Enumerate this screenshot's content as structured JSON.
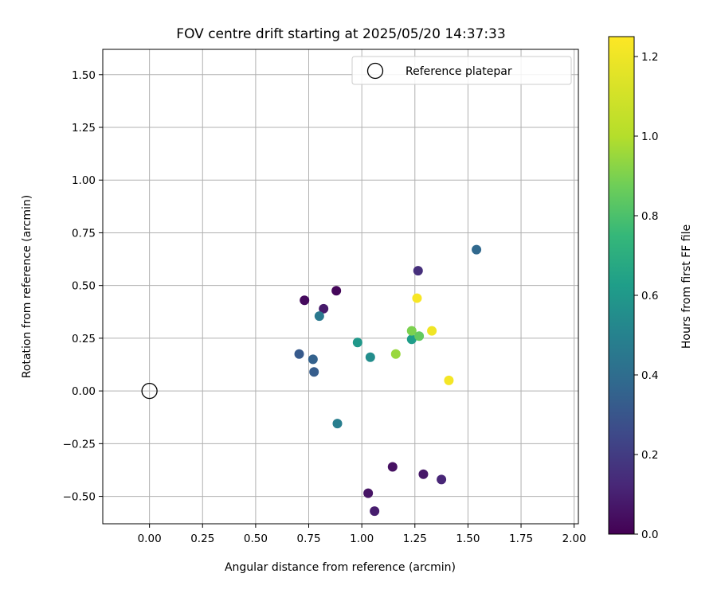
{
  "chart_data": {
    "type": "scatter",
    "title": "FOV centre drift starting at 2025/05/20 14:37:33",
    "xlabel": "Angular distance from reference (arcmin)",
    "ylabel": "Rotation from reference (arcmin)",
    "xlim": [
      -0.22,
      2.02
    ],
    "ylim": [
      -0.63,
      1.62
    ],
    "xticks": [
      0.0,
      0.25,
      0.5,
      0.75,
      1.0,
      1.25,
      1.5,
      1.75,
      2.0
    ],
    "xtick_labels": [
      "0.00",
      "0.25",
      "0.50",
      "0.75",
      "1.00",
      "1.25",
      "1.50",
      "1.75",
      "2.00"
    ],
    "yticks": [
      -0.5,
      -0.25,
      0.0,
      0.25,
      0.5,
      0.75,
      1.0,
      1.25,
      1.5
    ],
    "ytick_labels": [
      "−0.50",
      "−0.25",
      "0.00",
      "0.25",
      "0.50",
      "0.75",
      "1.00",
      "1.25",
      "1.50"
    ],
    "grid": true,
    "legend": {
      "placement": "top-right",
      "label": "Reference platepar"
    },
    "reference_point": {
      "x": 0.0,
      "y": 0.0
    },
    "colorbar": {
      "label": "Hours from first FF file",
      "colormap": "viridis",
      "range": [
        0.0,
        1.25
      ],
      "ticks": [
        0.0,
        0.2,
        0.4,
        0.6,
        0.8,
        1.0,
        1.2
      ],
      "tick_labels": [
        "0.0",
        "0.2",
        "0.4",
        "0.6",
        "0.8",
        "1.0",
        "1.2"
      ]
    },
    "points": [
      {
        "x": 0.73,
        "y": 0.43,
        "t": 0.03
      },
      {
        "x": 0.82,
        "y": 0.39,
        "t": 0.08
      },
      {
        "x": 0.88,
        "y": 0.475,
        "t": 0.02
      },
      {
        "x": 1.03,
        "y": -0.485,
        "t": 0.06
      },
      {
        "x": 1.06,
        "y": -0.57,
        "t": 0.09
      },
      {
        "x": 1.145,
        "y": -0.36,
        "t": 0.05
      },
      {
        "x": 1.29,
        "y": -0.395,
        "t": 0.07
      },
      {
        "x": 1.375,
        "y": -0.42,
        "t": 0.12
      },
      {
        "x": 1.265,
        "y": 0.57,
        "t": 0.15
      },
      {
        "x": 0.705,
        "y": 0.175,
        "t": 0.32
      },
      {
        "x": 0.77,
        "y": 0.15,
        "t": 0.35
      },
      {
        "x": 0.775,
        "y": 0.09,
        "t": 0.33
      },
      {
        "x": 0.8,
        "y": 0.355,
        "t": 0.45
      },
      {
        "x": 0.885,
        "y": -0.155,
        "t": 0.48
      },
      {
        "x": 1.54,
        "y": 0.67,
        "t": 0.38
      },
      {
        "x": 0.98,
        "y": 0.23,
        "t": 0.6
      },
      {
        "x": 1.04,
        "y": 0.16,
        "t": 0.55
      },
      {
        "x": 1.235,
        "y": 0.245,
        "t": 0.62
      },
      {
        "x": 1.235,
        "y": 0.285,
        "t": 0.9
      },
      {
        "x": 1.27,
        "y": 0.26,
        "t": 0.85
      },
      {
        "x": 1.16,
        "y": 0.175,
        "t": 0.95
      },
      {
        "x": 1.26,
        "y": 0.44,
        "t": 1.23
      },
      {
        "x": 1.33,
        "y": 0.285,
        "t": 1.2
      },
      {
        "x": 1.41,
        "y": 0.05,
        "t": 1.22
      }
    ]
  }
}
